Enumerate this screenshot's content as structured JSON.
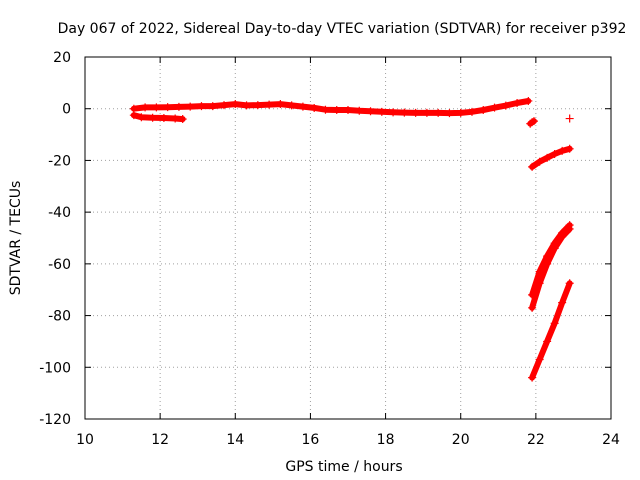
{
  "chart_data": {
    "type": "scatter",
    "title": "Day 067 of 2022, Sidereal Day-to-day VTEC variation (SDTVAR) for receiver p392",
    "xlabel": "GPS time / hours",
    "ylabel": "SDTVAR / TECUs",
    "xlim": [
      10,
      24
    ],
    "ylim": [
      -120,
      20
    ],
    "xticks": [
      10,
      12,
      14,
      16,
      18,
      20,
      22,
      24
    ],
    "yticks": [
      20,
      0,
      -20,
      -40,
      -60,
      -80,
      -100,
      -120
    ],
    "grid": true,
    "marker": "+",
    "color": "#ff0000",
    "series": [
      {
        "name": "band-main",
        "x": [
          11.3,
          11.6,
          11.9,
          12.2,
          12.5,
          12.8,
          13.1,
          13.4,
          13.7,
          14.0,
          14.3,
          14.6,
          14.9,
          15.2,
          15.5,
          15.8,
          16.1,
          16.4,
          16.7,
          17.0,
          17.3,
          17.6,
          17.9,
          18.2,
          18.5,
          18.8,
          19.1,
          19.4,
          19.7,
          20.0,
          20.3,
          20.6,
          20.9,
          21.2,
          21.5,
          21.8
        ],
        "y": [
          0,
          0.5,
          0.5,
          0.6,
          0.7,
          0.8,
          1.0,
          1.0,
          1.4,
          1.8,
          1.3,
          1.4,
          1.6,
          1.8,
          1.3,
          0.8,
          0.3,
          -0.4,
          -0.5,
          -0.5,
          -0.8,
          -1.0,
          -1.2,
          -1.4,
          -1.5,
          -1.6,
          -1.6,
          -1.6,
          -1.7,
          -1.6,
          -1.2,
          -0.5,
          0.4,
          1.2,
          2.2,
          3.0
        ]
      },
      {
        "name": "band-low",
        "x": [
          11.3,
          11.5,
          11.8,
          12.1,
          12.4,
          12.6
        ],
        "y": [
          -2.5,
          -3.3,
          -3.5,
          -3.6,
          -3.8,
          -4.0
        ]
      },
      {
        "name": "seg-small",
        "x": [
          21.85,
          21.9,
          21.95
        ],
        "y": [
          -5.8,
          -5.2,
          -4.8
        ]
      },
      {
        "name": "outlier",
        "x": [
          22.9
        ],
        "y": [
          -3.8
        ]
      },
      {
        "name": "seg-upper",
        "x": [
          21.9,
          22.1,
          22.3,
          22.5,
          22.7,
          22.9
        ],
        "y": [
          -22.5,
          -20.5,
          -19.0,
          -17.5,
          -16.3,
          -15.5
        ]
      },
      {
        "name": "seg-middle-a",
        "x": [
          21.9,
          22.1,
          22.3,
          22.5,
          22.7,
          22.9
        ],
        "y": [
          -72.0,
          -63.0,
          -57.0,
          -52.0,
          -48.0,
          -45.0
        ]
      },
      {
        "name": "seg-middle-b",
        "x": [
          21.9,
          22.1,
          22.3,
          22.5,
          22.7,
          22.9
        ],
        "y": [
          -77.0,
          -67.5,
          -60.0,
          -54.0,
          -49.5,
          -46.5
        ]
      },
      {
        "name": "seg-lower",
        "x": [
          21.9,
          22.1,
          22.3,
          22.5,
          22.7,
          22.9
        ],
        "y": [
          -104.0,
          -97.0,
          -90.0,
          -83.0,
          -75.0,
          -67.5
        ]
      }
    ]
  }
}
